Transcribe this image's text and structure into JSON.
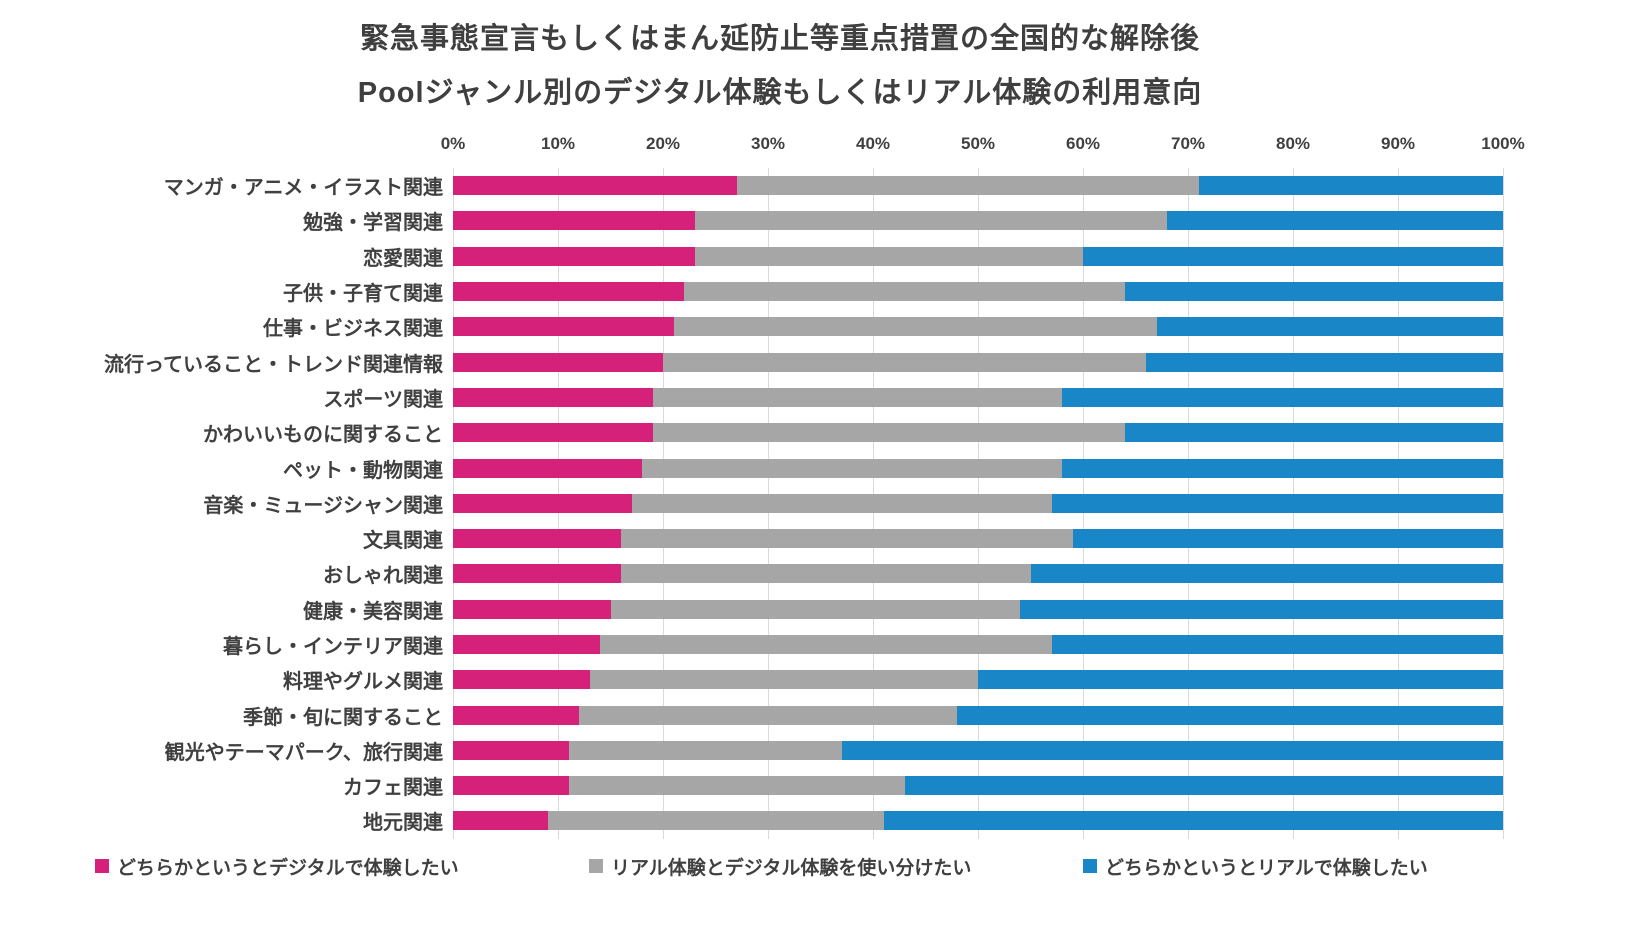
{
  "title": {
    "line1": "緊急事態宣言もしくはまん延防止等重点措置の全国的な解除後",
    "line2": "Poolジャンル別のデジタル体験もしくはリアル体験の利用意向"
  },
  "colors": {
    "digital": "#d6217b",
    "both": "#a6a6a6",
    "real": "#1886c7",
    "grid": "#d9d9d9",
    "text": "#404040"
  },
  "axis": {
    "min": 0,
    "max": 100,
    "ticks": [
      "0%",
      "10%",
      "20%",
      "30%",
      "40%",
      "50%",
      "60%",
      "70%",
      "80%",
      "90%",
      "100%"
    ]
  },
  "legend": [
    {
      "label": "どちらかというとデジタルで体験したい",
      "color_key": "digital"
    },
    {
      "label": "リアル体験とデジタル体験を使い分けたい",
      "color_key": "both"
    },
    {
      "label": "どちらかというとリアルで体験したい",
      "color_key": "real"
    }
  ],
  "chart_data": {
    "type": "bar",
    "orientation": "horizontal",
    "stacked": true,
    "unit": "%",
    "xlim": [
      0,
      100
    ],
    "grid": true,
    "legend_position": "bottom",
    "categories": [
      "マンガ・アニメ・イラスト関連",
      "勉強・学習関連",
      "恋愛関連",
      "子供・子育て関連",
      "仕事・ビジネス関連",
      "流行っていること・トレンド関連情報",
      "スポーツ関連",
      "かわいいものに関すること",
      "ペット・動物関連",
      "音楽・ミュージシャン関連",
      "文具関連",
      "おしゃれ関連",
      "健康・美容関連",
      "暮らし・インテリア関連",
      "料理やグルメ関連",
      "季節・旬に関すること",
      "観光やテーマパーク、旅行関連",
      "カフェ関連",
      "地元関連"
    ],
    "series": [
      {
        "key": "digital",
        "name": "どちらかというとデジタルで体験したい",
        "color": "#d6217b",
        "values": [
          27,
          23,
          23,
          22,
          21,
          20,
          19,
          19,
          18,
          17,
          16,
          16,
          15,
          14,
          13,
          12,
          11,
          11,
          9
        ]
      },
      {
        "key": "both",
        "name": "リアル体験とデジタル体験を使い分けたい",
        "color": "#a6a6a6",
        "values": [
          44,
          45,
          37,
          42,
          46,
          46,
          39,
          45,
          40,
          40,
          43,
          39,
          39,
          43,
          37,
          36,
          26,
          32,
          32
        ]
      },
      {
        "key": "real",
        "name": "どちらかというとリアルで体験したい",
        "color": "#1886c7",
        "values": [
          29,
          32,
          40,
          36,
          33,
          34,
          42,
          36,
          42,
          43,
          41,
          45,
          46,
          43,
          50,
          52,
          63,
          57,
          59
        ]
      }
    ]
  }
}
